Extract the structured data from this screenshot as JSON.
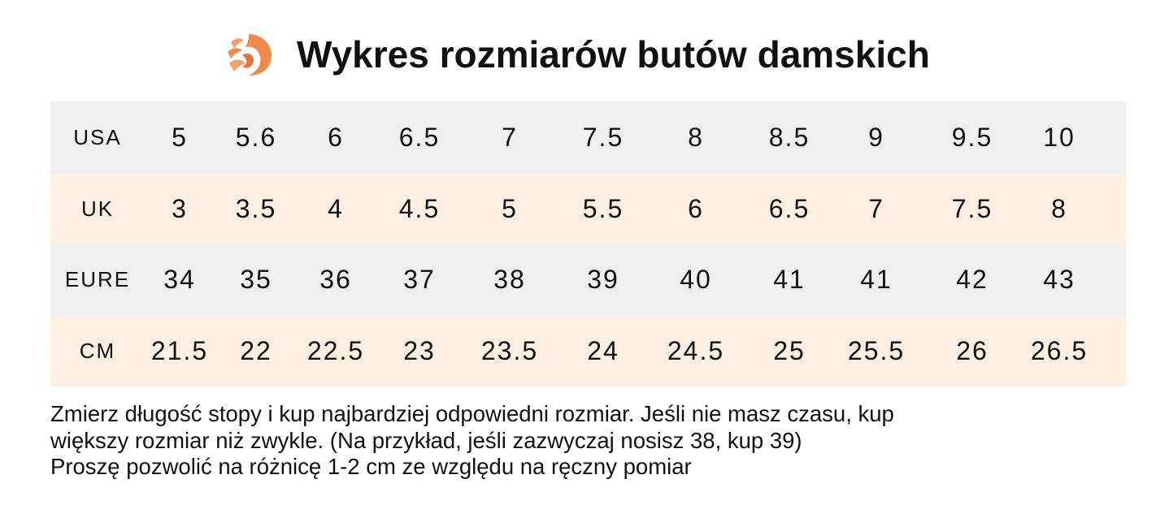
{
  "header": {
    "title": "Wykres rozmiarów butów damskich"
  },
  "table": {
    "rows": [
      {
        "label": "USA",
        "cells": [
          "5",
          "5.6",
          "6",
          "6.5",
          "7",
          "7.5",
          "8",
          "8.5",
          "9",
          "9.5",
          "10"
        ]
      },
      {
        "label": "UK",
        "cells": [
          "3",
          "3.5",
          "4",
          "4.5",
          "5",
          "5.5",
          "6",
          "6.5",
          "7",
          "7.5",
          "8"
        ]
      },
      {
        "label": "EURE",
        "cells": [
          "34",
          "35",
          "36",
          "37",
          "38",
          "39",
          "40",
          "41",
          "41",
          "42",
          "43"
        ]
      },
      {
        "label": "CM",
        "cells": [
          "21.5",
          "22",
          "22.5",
          "23",
          "23.5",
          "24",
          "24.5",
          "25",
          "25.5",
          "26",
          "26.5"
        ]
      }
    ]
  },
  "notes": [
    "Zmierz długość stopy i kup najbardziej odpowiedni rozmiar. Jeśli nie masz czasu, kup",
    "większy rozmiar niż zwykle. (Na przykład, jeśli zazwyczaj nosisz 38, kup 39)",
    "Proszę pozwolić na różnicę 1-2 cm ze względu na ręczny pomiar"
  ]
}
